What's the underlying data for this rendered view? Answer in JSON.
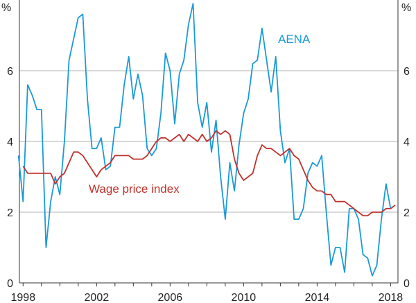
{
  "chart_data": {
    "type": "line",
    "title": "",
    "xlabel": "",
    "ylabel": "%",
    "ylabel_right": "%",
    "xlim": [
      1997.8,
      2018.4
    ],
    "ylim": [
      0,
      8
    ],
    "yticks": [
      0,
      2,
      4,
      6
    ],
    "xticks": [
      1998,
      2002,
      2006,
      2010,
      2014,
      2018
    ],
    "grid": "horizontal",
    "series": [
      {
        "name": "AENA",
        "color": "#1a9ad6",
        "x": [
          1997.75,
          1998.0,
          1998.25,
          1998.5,
          1998.75,
          1999.0,
          1999.25,
          1999.5,
          1999.75,
          2000.0,
          2000.25,
          2000.5,
          2000.75,
          2001.0,
          2001.25,
          2001.5,
          2001.75,
          2002.0,
          2002.25,
          2002.5,
          2002.75,
          2003.0,
          2003.25,
          2003.5,
          2003.75,
          2004.0,
          2004.25,
          2004.5,
          2004.75,
          2005.0,
          2005.25,
          2005.5,
          2005.75,
          2006.0,
          2006.25,
          2006.5,
          2006.75,
          2007.0,
          2007.25,
          2007.5,
          2007.75,
          2008.0,
          2008.25,
          2008.5,
          2008.75,
          2009.0,
          2009.25,
          2009.5,
          2009.75,
          2010.0,
          2010.25,
          2010.5,
          2010.75,
          2011.0,
          2011.25,
          2011.5,
          2011.75,
          2012.0,
          2012.25,
          2012.5,
          2012.75,
          2013.0,
          2013.25,
          2013.5,
          2013.75,
          2014.0,
          2014.25,
          2014.5,
          2014.75,
          2015.0,
          2015.25,
          2015.5,
          2015.75,
          2016.0,
          2016.25,
          2016.5,
          2016.75,
          2017.0,
          2017.25,
          2017.5,
          2017.75,
          2018.0
        ],
        "values": [
          3.6,
          2.3,
          5.6,
          5.3,
          4.9,
          4.9,
          1.0,
          2.3,
          3.0,
          2.5,
          4.0,
          6.3,
          6.9,
          7.5,
          7.6,
          5.2,
          3.8,
          3.8,
          4.1,
          3.2,
          3.3,
          4.4,
          4.4,
          5.6,
          6.4,
          5.2,
          5.9,
          5.3,
          3.8,
          3.6,
          3.8,
          4.8,
          6.5,
          6.0,
          4.5,
          5.9,
          6.3,
          7.3,
          7.9,
          5.1,
          4.4,
          5.1,
          3.7,
          4.6,
          3.0,
          1.8,
          3.4,
          2.6,
          3.9,
          4.8,
          5.2,
          6.2,
          6.3,
          7.2,
          6.3,
          5.4,
          6.4,
          4.3,
          3.4,
          3.8,
          1.8,
          1.8,
          2.1,
          3.1,
          3.4,
          3.3,
          3.6,
          2.0,
          0.5,
          1.0,
          1.0,
          0.3,
          2.1,
          2.1,
          1.8,
          0.8,
          0.7,
          0.2,
          0.5,
          1.8,
          2.8,
          2.1
        ]
      },
      {
        "name": "Wage price index",
        "color": "#c0312b",
        "x": [
          1998.0,
          1998.25,
          1998.5,
          1998.75,
          1999.0,
          1999.25,
          1999.5,
          1999.75,
          2000.0,
          2000.25,
          2000.5,
          2000.75,
          2001.0,
          2001.25,
          2001.5,
          2001.75,
          2002.0,
          2002.25,
          2002.5,
          2002.75,
          2003.0,
          2003.25,
          2003.5,
          2003.75,
          2004.0,
          2004.25,
          2004.5,
          2004.75,
          2005.0,
          2005.25,
          2005.5,
          2005.75,
          2006.0,
          2006.25,
          2006.5,
          2006.75,
          2007.0,
          2007.25,
          2007.5,
          2007.75,
          2008.0,
          2008.25,
          2008.5,
          2008.75,
          2009.0,
          2009.25,
          2009.5,
          2009.75,
          2010.0,
          2010.25,
          2010.5,
          2010.75,
          2011.0,
          2011.25,
          2011.5,
          2011.75,
          2012.0,
          2012.25,
          2012.5,
          2012.75,
          2013.0,
          2013.25,
          2013.5,
          2013.75,
          2014.0,
          2014.25,
          2014.5,
          2014.75,
          2015.0,
          2015.25,
          2015.5,
          2015.75,
          2016.0,
          2016.25,
          2016.5,
          2016.75,
          2017.0,
          2017.25,
          2017.5,
          2017.75,
          2018.0,
          2018.25
        ],
        "values": [
          3.3,
          3.1,
          3.1,
          3.1,
          3.1,
          3.1,
          3.1,
          2.8,
          3.0,
          3.1,
          3.4,
          3.7,
          3.7,
          3.6,
          3.4,
          3.2,
          3.0,
          3.2,
          3.3,
          3.4,
          3.6,
          3.6,
          3.6,
          3.6,
          3.5,
          3.5,
          3.5,
          3.6,
          3.8,
          4.0,
          4.1,
          4.1,
          4.0,
          4.1,
          4.2,
          4.0,
          4.2,
          4.1,
          4.0,
          4.2,
          4.0,
          4.1,
          4.3,
          4.2,
          4.3,
          4.2,
          3.5,
          3.1,
          2.9,
          3.0,
          3.1,
          3.6,
          3.9,
          3.8,
          3.8,
          3.7,
          3.6,
          3.7,
          3.8,
          3.6,
          3.5,
          3.2,
          2.9,
          2.7,
          2.6,
          2.6,
          2.5,
          2.5,
          2.3,
          2.3,
          2.3,
          2.2,
          2.1,
          2.0,
          1.9,
          1.9,
          2.0,
          2.0,
          2.0,
          2.1,
          2.1,
          2.2
        ]
      }
    ],
    "annotations": [
      {
        "text": "AENA",
        "series": "AENA"
      },
      {
        "text": "Wage price index",
        "series": "Wage price index"
      }
    ]
  }
}
